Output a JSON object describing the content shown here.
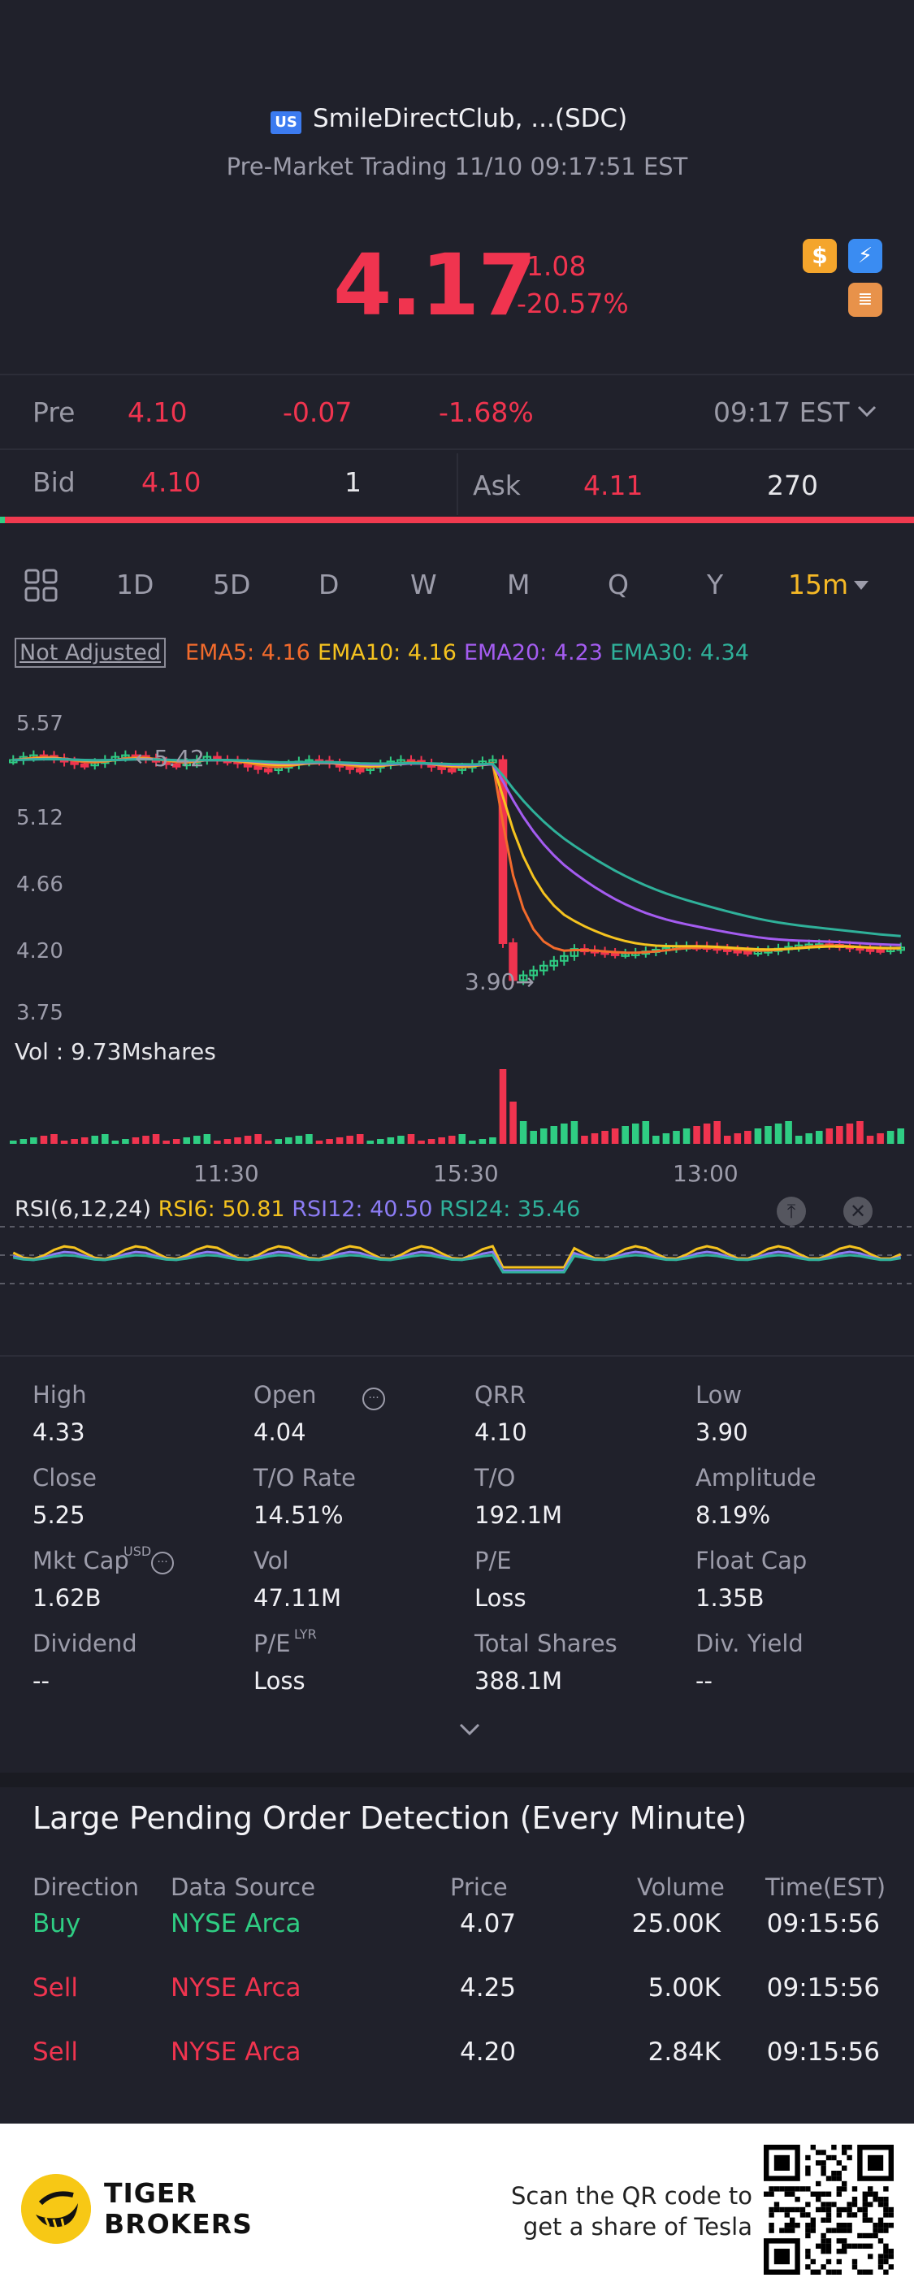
{
  "header": {
    "exchange_badge": "US",
    "stock_name": "SmileDirectClub, ...(SDC)",
    "session": "Pre-Market Trading 11/10 09:17:51 EST",
    "price": "4.17",
    "change": "-1.08",
    "change_pct": "-20.57%",
    "icons": [
      "dollar-badge-icon",
      "lightning-icon",
      "layers-icon"
    ]
  },
  "pre": {
    "label": "Pre",
    "price": "4.10",
    "change": "-0.07",
    "change_pct": "-1.68%",
    "time": "09:17 EST"
  },
  "quote": {
    "bid_label": "Bid",
    "bid_price": "4.10",
    "bid_size": "1",
    "ask_label": "Ask",
    "ask_price": "4.11",
    "ask_size": "270"
  },
  "tabs": [
    "1D",
    "5D",
    "D",
    "W",
    "M",
    "Q",
    "Y",
    "15m"
  ],
  "active_tab": "15m",
  "legend": {
    "not_adjusted": "Not Adjusted",
    "ema5": "EMA5: 4.16",
    "ema10": "EMA10: 4.16",
    "ema20": "EMA20: 4.23",
    "ema30": "EMA30: 4.34"
  },
  "colors": {
    "up": "#2fcd83",
    "down": "#f0344f",
    "ema5": "#f26b2c",
    "ema10": "#f5c31f",
    "ema20": "#a45cf0",
    "ema30": "#2fb19a",
    "accent": "#f5b826"
  },
  "chart": {
    "y_ticks": [
      "5.57",
      "5.12",
      "4.66",
      "4.20",
      "3.75"
    ],
    "high_marker": "5.42",
    "low_marker": "3.90",
    "volume_label": "Vol  : 9.73Mshares",
    "x_ticks": [
      "11:30",
      "15:30",
      "13:00"
    ]
  },
  "chart_data": {
    "type": "candlestick",
    "ylim": [
      3.75,
      5.57
    ],
    "y_ticks": [
      5.57,
      5.12,
      4.66,
      4.2,
      3.75
    ],
    "x_ticks": [
      "11:30",
      "15:30",
      "13:00"
    ],
    "ema": [
      {
        "name": "EMA5",
        "value": 4.16
      },
      {
        "name": "EMA10",
        "value": 4.16
      },
      {
        "name": "EMA20",
        "value": 4.23
      },
      {
        "name": "EMA30",
        "value": 4.34
      }
    ],
    "high_marker": 5.42,
    "low_marker": 3.9,
    "volume_total": "9.73Mshares",
    "rsi": [
      {
        "name": "RSI6",
        "value": 50.81
      },
      {
        "name": "RSI12",
        "value": 40.5
      },
      {
        "name": "RSI24",
        "value": 35.46
      }
    ]
  },
  "rsi": {
    "label": "RSI(6,12,24)",
    "rsi6": "RSI6: 50.81",
    "rsi12": "RSI12: 40.50",
    "rsi24": "RSI24: 35.46"
  },
  "stats": [
    {
      "label": "High",
      "value": "4.33"
    },
    {
      "label": "Open",
      "value": "4.04"
    },
    {
      "label": "QRR",
      "value": "4.10"
    },
    {
      "label": "Low",
      "value": "3.90"
    },
    {
      "label": "Close",
      "value": "5.25"
    },
    {
      "label": "T/O Rate",
      "value": "14.51%"
    },
    {
      "label": "T/O",
      "value": "192.1M"
    },
    {
      "label": "Amplitude",
      "value": "8.19%"
    },
    {
      "label": "Mkt Cap",
      "value": "1.62B"
    },
    {
      "label": "Vol",
      "value": "47.11M"
    },
    {
      "label": "P/E",
      "value": "Loss"
    },
    {
      "label": "Float Cap",
      "value": "1.35B"
    },
    {
      "label": "Dividend",
      "value": "--"
    },
    {
      "label": "P/E",
      "value": "Loss"
    },
    {
      "label": "Total Shares",
      "value": "388.1M"
    },
    {
      "label": "Div. Yield",
      "value": "--"
    }
  ],
  "stat_superscripts": {
    "mkt_cap": "USD",
    "pe_lyr": "LYR"
  },
  "orders": {
    "title": "Large Pending Order Detection (Every Minute)",
    "headers": [
      "Direction",
      "Data Source",
      "Price",
      "Volume",
      "Time(EST)"
    ],
    "rows": [
      {
        "direction": "Buy",
        "source": "NYSE Arca",
        "price": "4.07",
        "volume": "25.00K",
        "time": "09:15:56"
      },
      {
        "direction": "Sell",
        "source": "NYSE Arca",
        "price": "4.25",
        "volume": "5.00K",
        "time": "09:15:56"
      },
      {
        "direction": "Sell",
        "source": "NYSE Arca",
        "price": "4.20",
        "volume": "2.84K",
        "time": "09:15:56"
      }
    ]
  },
  "footer": {
    "brand_line1": "TIGER",
    "brand_line2": "BROKERS",
    "scan_line1": "Scan the QR code to",
    "scan_line2": "get a share of Tesla"
  }
}
